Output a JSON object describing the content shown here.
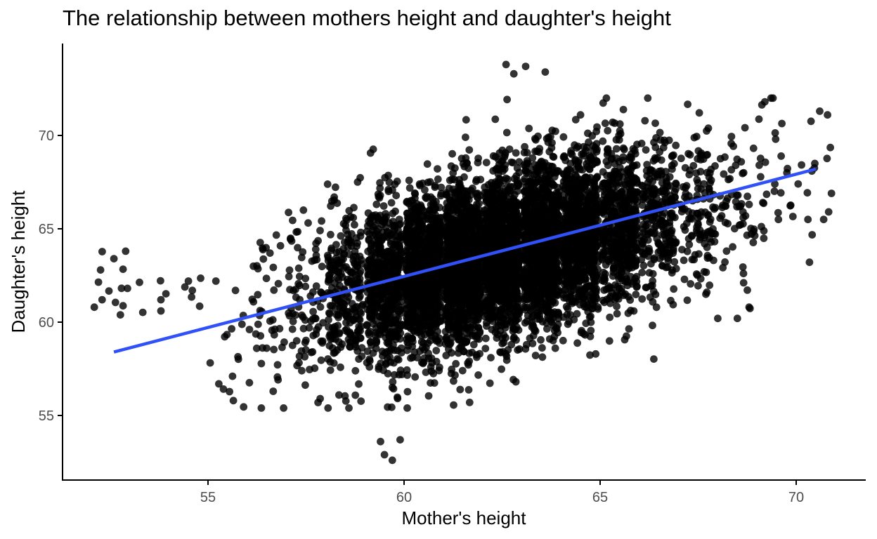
{
  "chart_data": {
    "type": "scatter",
    "title": "The relationship between mothers height and daughter's height",
    "xlabel": "Mother's height",
    "ylabel": "Daughter's height",
    "xlim": [
      51.5,
      71.5
    ],
    "ylim": [
      52.2,
      74.5
    ],
    "xticks": [
      55,
      60,
      65,
      70
    ],
    "yticks": [
      55,
      60,
      65,
      70
    ],
    "grid": false,
    "legend": "none",
    "colors": {
      "points": "#000000",
      "fit_line": "#3050f8",
      "axis": "#000000",
      "tick_label": "#4d4d4d"
    },
    "point_opacity": 0.8,
    "series": [
      {
        "kind": "points",
        "note_columns": [
          "mother_height_group",
          "count",
          "daughter_mean",
          "daughter_sd",
          "jitter_width"
        ],
        "groups": [
          [
            52.5,
            10,
            62.3,
            1.2,
            0.45
          ],
          [
            53.5,
            4,
            61.5,
            0.7,
            0.45
          ],
          [
            54.5,
            4,
            61.9,
            0.7,
            0.45
          ],
          [
            55.5,
            14,
            58.3,
            1.6,
            0.45
          ],
          [
            56.5,
            45,
            60.5,
            2.3,
            0.45
          ],
          [
            57.5,
            90,
            61.0,
            2.3,
            0.45
          ],
          [
            58.5,
            260,
            61.4,
            2.2,
            0.45
          ],
          [
            59.5,
            550,
            62.0,
            2.3,
            0.45
          ],
          [
            60.5,
            850,
            62.5,
            2.2,
            0.45
          ],
          [
            61.5,
            1100,
            63.0,
            2.2,
            0.45
          ],
          [
            62.5,
            1150,
            63.6,
            2.2,
            0.45
          ],
          [
            63.5,
            1050,
            64.2,
            2.2,
            0.45
          ],
          [
            64.5,
            800,
            64.7,
            2.2,
            0.45
          ],
          [
            65.5,
            500,
            65.2,
            2.2,
            0.45
          ],
          [
            66.5,
            260,
            65.5,
            2.2,
            0.45
          ],
          [
            67.5,
            130,
            66.0,
            2.2,
            0.45
          ],
          [
            68.5,
            60,
            66.3,
            2.3,
            0.45
          ],
          [
            69.5,
            28,
            67.5,
            2.0,
            0.45
          ],
          [
            70.5,
            12,
            68.5,
            1.8,
            0.45
          ]
        ],
        "extra_points": [
          [
            62.6,
            73.8
          ],
          [
            63.1,
            73.7
          ],
          [
            62.8,
            73.3
          ],
          [
            63.6,
            73.4
          ],
          [
            59.4,
            53.6
          ],
          [
            59.5,
            52.9
          ],
          [
            59.7,
            52.6
          ],
          [
            59.9,
            53.7
          ],
          [
            52.1,
            60.8
          ],
          [
            52.3,
            61.2
          ],
          [
            52.6,
            63.4
          ],
          [
            52.9,
            63.8
          ],
          [
            53.8,
            61.2
          ],
          [
            53.8,
            60.6
          ],
          [
            54.6,
            61.7
          ],
          [
            54.5,
            62.2
          ],
          [
            55.2,
            62.2
          ],
          [
            55.7,
            61.7
          ],
          [
            68.0,
            60.2
          ],
          [
            68.5,
            60.2
          ],
          [
            68.8,
            60.8
          ],
          [
            69.2,
            71.8
          ],
          [
            70.3,
            65.5
          ],
          [
            70.7,
            65.5
          ],
          [
            70.9,
            66.9
          ],
          [
            70.8,
            71.1
          ],
          [
            70.6,
            71.3
          ],
          [
            64.5,
            71.1
          ]
        ]
      },
      {
        "kind": "line",
        "x": [
          52.6,
          70.5
        ],
        "y": [
          58.4,
          68.2
        ]
      }
    ]
  }
}
